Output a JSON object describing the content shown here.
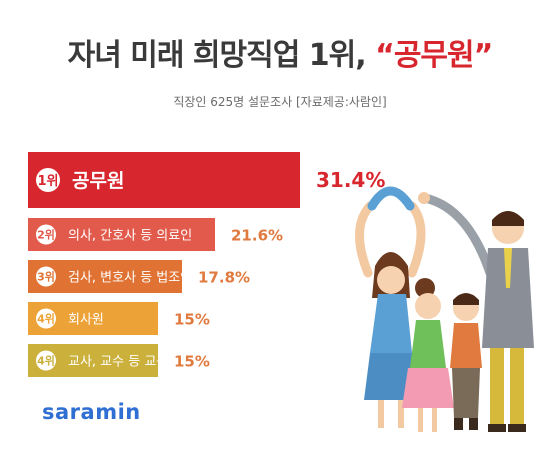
{
  "title_main": "자녀 미래 희망직업 1위,",
  "title_highlight": "“공무원”",
  "subtitle": "직장인 625명 설문조사  [자료제공:사람인]",
  "brand": "saramin",
  "colors": {
    "rank1": "#d8262f",
    "rank2": "#e25a4b",
    "rank3": "#e07233",
    "rank4a": "#eda237",
    "rank4b": "#cbb03c",
    "value1": "#d8262f",
    "value_other": "#e07a3e"
  },
  "chart_data": {
    "type": "bar",
    "orientation": "horizontal",
    "categories": [
      "공무원",
      "의사, 간호사 등 의료인",
      "검사, 변호사 등 법조인",
      "회사원",
      "교사, 교수 등 교육자"
    ],
    "ranks": [
      "1위",
      "2위",
      "3위",
      "4위",
      "4위"
    ],
    "values": [
      31.4,
      21.6,
      17.8,
      15,
      15
    ],
    "value_labels": [
      "31.4%",
      "21.6%",
      "17.8%",
      "15%",
      "15%"
    ],
    "title": "자녀 미래 희망직업 1위, “공무원”",
    "xlabel": "",
    "ylabel": "",
    "xlim": [
      0,
      31.4
    ],
    "grid": false,
    "legend": "none"
  }
}
